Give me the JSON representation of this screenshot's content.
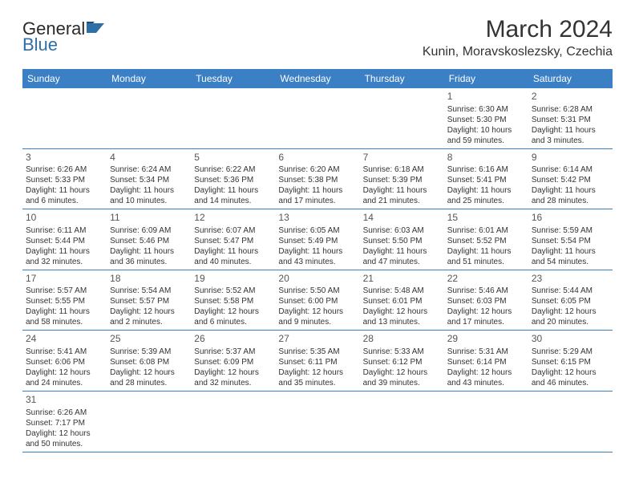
{
  "logo": {
    "text1": "General",
    "text2": "Blue"
  },
  "title": "March 2024",
  "location": "Kunin, Moravskoslezsky, Czechia",
  "header_bg": "#3b7fc4",
  "header_fg": "#ffffff",
  "divider_color": "#3b7fc4",
  "dayNames": [
    "Sunday",
    "Monday",
    "Tuesday",
    "Wednesday",
    "Thursday",
    "Friday",
    "Saturday"
  ],
  "weeks": [
    [
      null,
      null,
      null,
      null,
      null,
      {
        "n": "1",
        "sr": "Sunrise: 6:30 AM",
        "ss": "Sunset: 5:30 PM",
        "dl": "Daylight: 10 hours and 59 minutes."
      },
      {
        "n": "2",
        "sr": "Sunrise: 6:28 AM",
        "ss": "Sunset: 5:31 PM",
        "dl": "Daylight: 11 hours and 3 minutes."
      }
    ],
    [
      {
        "n": "3",
        "sr": "Sunrise: 6:26 AM",
        "ss": "Sunset: 5:33 PM",
        "dl": "Daylight: 11 hours and 6 minutes."
      },
      {
        "n": "4",
        "sr": "Sunrise: 6:24 AM",
        "ss": "Sunset: 5:34 PM",
        "dl": "Daylight: 11 hours and 10 minutes."
      },
      {
        "n": "5",
        "sr": "Sunrise: 6:22 AM",
        "ss": "Sunset: 5:36 PM",
        "dl": "Daylight: 11 hours and 14 minutes."
      },
      {
        "n": "6",
        "sr": "Sunrise: 6:20 AM",
        "ss": "Sunset: 5:38 PM",
        "dl": "Daylight: 11 hours and 17 minutes."
      },
      {
        "n": "7",
        "sr": "Sunrise: 6:18 AM",
        "ss": "Sunset: 5:39 PM",
        "dl": "Daylight: 11 hours and 21 minutes."
      },
      {
        "n": "8",
        "sr": "Sunrise: 6:16 AM",
        "ss": "Sunset: 5:41 PM",
        "dl": "Daylight: 11 hours and 25 minutes."
      },
      {
        "n": "9",
        "sr": "Sunrise: 6:14 AM",
        "ss": "Sunset: 5:42 PM",
        "dl": "Daylight: 11 hours and 28 minutes."
      }
    ],
    [
      {
        "n": "10",
        "sr": "Sunrise: 6:11 AM",
        "ss": "Sunset: 5:44 PM",
        "dl": "Daylight: 11 hours and 32 minutes."
      },
      {
        "n": "11",
        "sr": "Sunrise: 6:09 AM",
        "ss": "Sunset: 5:46 PM",
        "dl": "Daylight: 11 hours and 36 minutes."
      },
      {
        "n": "12",
        "sr": "Sunrise: 6:07 AM",
        "ss": "Sunset: 5:47 PM",
        "dl": "Daylight: 11 hours and 40 minutes."
      },
      {
        "n": "13",
        "sr": "Sunrise: 6:05 AM",
        "ss": "Sunset: 5:49 PM",
        "dl": "Daylight: 11 hours and 43 minutes."
      },
      {
        "n": "14",
        "sr": "Sunrise: 6:03 AM",
        "ss": "Sunset: 5:50 PM",
        "dl": "Daylight: 11 hours and 47 minutes."
      },
      {
        "n": "15",
        "sr": "Sunrise: 6:01 AM",
        "ss": "Sunset: 5:52 PM",
        "dl": "Daylight: 11 hours and 51 minutes."
      },
      {
        "n": "16",
        "sr": "Sunrise: 5:59 AM",
        "ss": "Sunset: 5:54 PM",
        "dl": "Daylight: 11 hours and 54 minutes."
      }
    ],
    [
      {
        "n": "17",
        "sr": "Sunrise: 5:57 AM",
        "ss": "Sunset: 5:55 PM",
        "dl": "Daylight: 11 hours and 58 minutes."
      },
      {
        "n": "18",
        "sr": "Sunrise: 5:54 AM",
        "ss": "Sunset: 5:57 PM",
        "dl": "Daylight: 12 hours and 2 minutes."
      },
      {
        "n": "19",
        "sr": "Sunrise: 5:52 AM",
        "ss": "Sunset: 5:58 PM",
        "dl": "Daylight: 12 hours and 6 minutes."
      },
      {
        "n": "20",
        "sr": "Sunrise: 5:50 AM",
        "ss": "Sunset: 6:00 PM",
        "dl": "Daylight: 12 hours and 9 minutes."
      },
      {
        "n": "21",
        "sr": "Sunrise: 5:48 AM",
        "ss": "Sunset: 6:01 PM",
        "dl": "Daylight: 12 hours and 13 minutes."
      },
      {
        "n": "22",
        "sr": "Sunrise: 5:46 AM",
        "ss": "Sunset: 6:03 PM",
        "dl": "Daylight: 12 hours and 17 minutes."
      },
      {
        "n": "23",
        "sr": "Sunrise: 5:44 AM",
        "ss": "Sunset: 6:05 PM",
        "dl": "Daylight: 12 hours and 20 minutes."
      }
    ],
    [
      {
        "n": "24",
        "sr": "Sunrise: 5:41 AM",
        "ss": "Sunset: 6:06 PM",
        "dl": "Daylight: 12 hours and 24 minutes."
      },
      {
        "n": "25",
        "sr": "Sunrise: 5:39 AM",
        "ss": "Sunset: 6:08 PM",
        "dl": "Daylight: 12 hours and 28 minutes."
      },
      {
        "n": "26",
        "sr": "Sunrise: 5:37 AM",
        "ss": "Sunset: 6:09 PM",
        "dl": "Daylight: 12 hours and 32 minutes."
      },
      {
        "n": "27",
        "sr": "Sunrise: 5:35 AM",
        "ss": "Sunset: 6:11 PM",
        "dl": "Daylight: 12 hours and 35 minutes."
      },
      {
        "n": "28",
        "sr": "Sunrise: 5:33 AM",
        "ss": "Sunset: 6:12 PM",
        "dl": "Daylight: 12 hours and 39 minutes."
      },
      {
        "n": "29",
        "sr": "Sunrise: 5:31 AM",
        "ss": "Sunset: 6:14 PM",
        "dl": "Daylight: 12 hours and 43 minutes."
      },
      {
        "n": "30",
        "sr": "Sunrise: 5:29 AM",
        "ss": "Sunset: 6:15 PM",
        "dl": "Daylight: 12 hours and 46 minutes."
      }
    ],
    [
      {
        "n": "31",
        "sr": "Sunrise: 6:26 AM",
        "ss": "Sunset: 7:17 PM",
        "dl": "Daylight: 12 hours and 50 minutes."
      },
      null,
      null,
      null,
      null,
      null,
      null
    ]
  ]
}
